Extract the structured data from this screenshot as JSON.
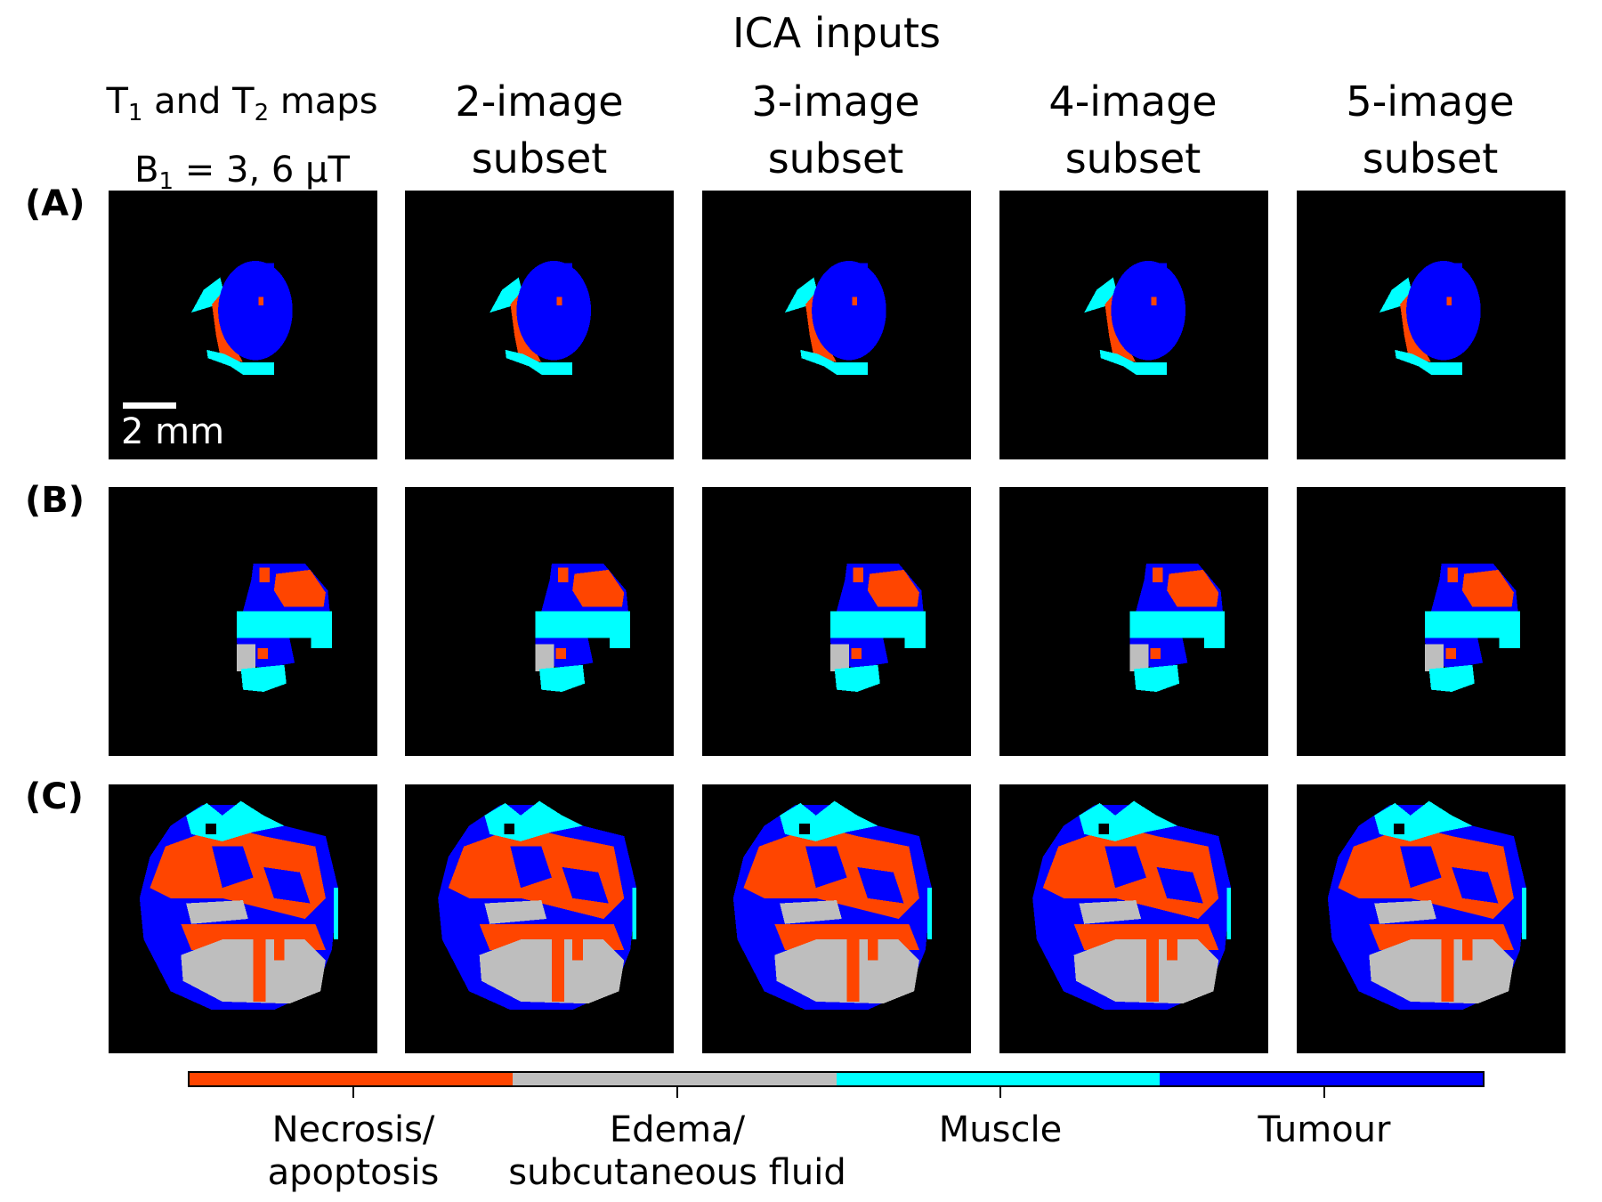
{
  "figure": {
    "title": "ICA inputs",
    "columns": [
      {
        "line1_a": "T",
        "line1_sub1": "1",
        "line1_b": " and T",
        "line1_sub2": "2",
        "line1_c": " maps",
        "line2_a": "B",
        "line2_sub": "1",
        "line2_b": " = 3, 6 µT"
      },
      {
        "line1": "2-image",
        "line2": "subset"
      },
      {
        "line1": "3-image",
        "line2": "subset"
      },
      {
        "line1": "4-image",
        "line2": "subset"
      },
      {
        "line1": "5-image",
        "line2": "subset"
      }
    ],
    "rows": [
      "(A)",
      "(B)",
      "(C)"
    ],
    "scale_bar": "2 mm",
    "colorbar": [
      {
        "line1": "Necrosis/",
        "line2": "apoptosis",
        "color": "#FF4500"
      },
      {
        "line1": "Edema/",
        "line2": "subcutaneous fluid",
        "color": "#BEBEBE"
      },
      {
        "line1": "Muscle",
        "line2": "",
        "color": "#00FFFF"
      },
      {
        "line1": "Tumour",
        "line2": "",
        "color": "#0000FF"
      }
    ],
    "background_color": "#000000"
  }
}
